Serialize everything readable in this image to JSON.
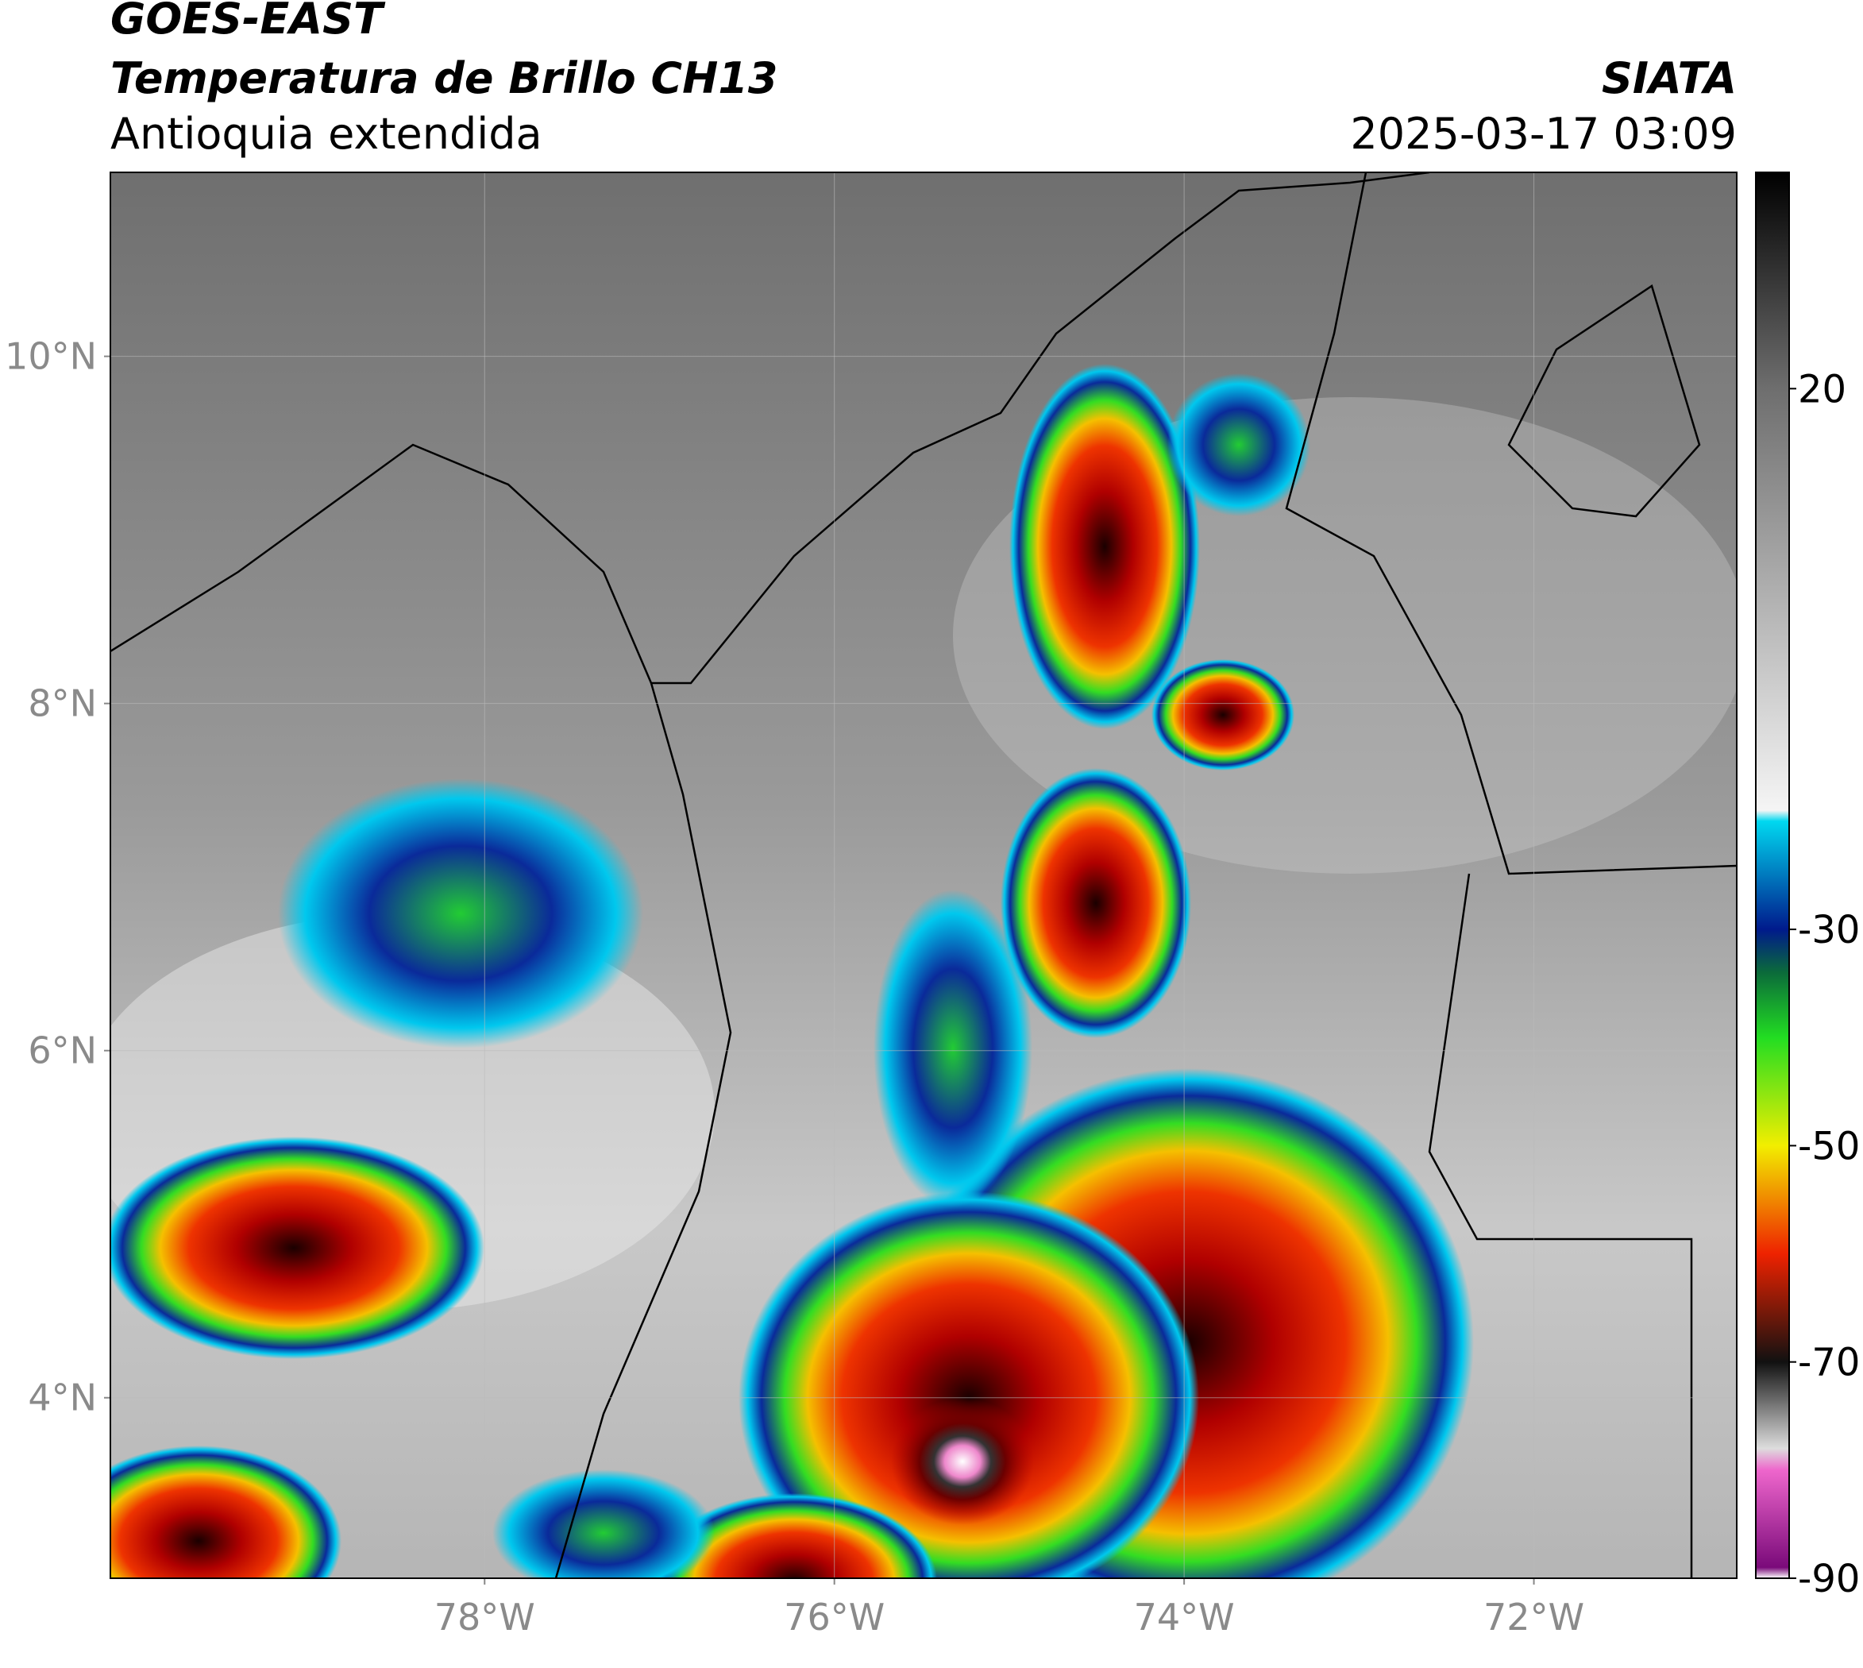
{
  "header": {
    "title": "GOES-EAST",
    "subtitle": "Temperatura de Brillo CH13",
    "region": "Antioquia extendida",
    "source": "SIATA",
    "datetime": "2025-03-17 03:09"
  },
  "map": {
    "xlim": [
      -80.14,
      -70.84
    ],
    "ylim": [
      2.96,
      11.06
    ],
    "xticks": [
      {
        "value": -78,
        "label": "78°W"
      },
      {
        "value": -76,
        "label": "76°W"
      },
      {
        "value": -74,
        "label": "74°W"
      },
      {
        "value": -72,
        "label": "72°W"
      }
    ],
    "yticks": [
      {
        "value": 10,
        "label": "10°N"
      },
      {
        "value": 8,
        "label": "8°N"
      },
      {
        "value": 6,
        "label": "6°N"
      },
      {
        "value": 4,
        "label": "4°N"
      }
    ]
  },
  "colorbar": {
    "lim": [
      -90,
      40
    ],
    "ticks": [
      20,
      -30,
      -50,
      -70,
      -90
    ],
    "stops": [
      {
        "value": 40,
        "color": "#000000"
      },
      {
        "value": 20,
        "color": "#6e6e6e"
      },
      {
        "value": -19,
        "color": "#f5f5f5"
      },
      {
        "value": -20,
        "color": "#00d8f0"
      },
      {
        "value": -30,
        "color": "#001a8c"
      },
      {
        "value": -34,
        "color": "#0b6b3a"
      },
      {
        "value": -40,
        "color": "#22dd22"
      },
      {
        "value": -50,
        "color": "#f2ee00"
      },
      {
        "value": -60,
        "color": "#ee2200"
      },
      {
        "value": -70,
        "color": "#111111"
      },
      {
        "value": -78,
        "color": "#dddddd"
      },
      {
        "value": -80,
        "color": "#ee66cc"
      },
      {
        "value": -89,
        "color": "#7a0a7a"
      },
      {
        "value": -90,
        "color": "#ffffff"
      }
    ]
  }
}
